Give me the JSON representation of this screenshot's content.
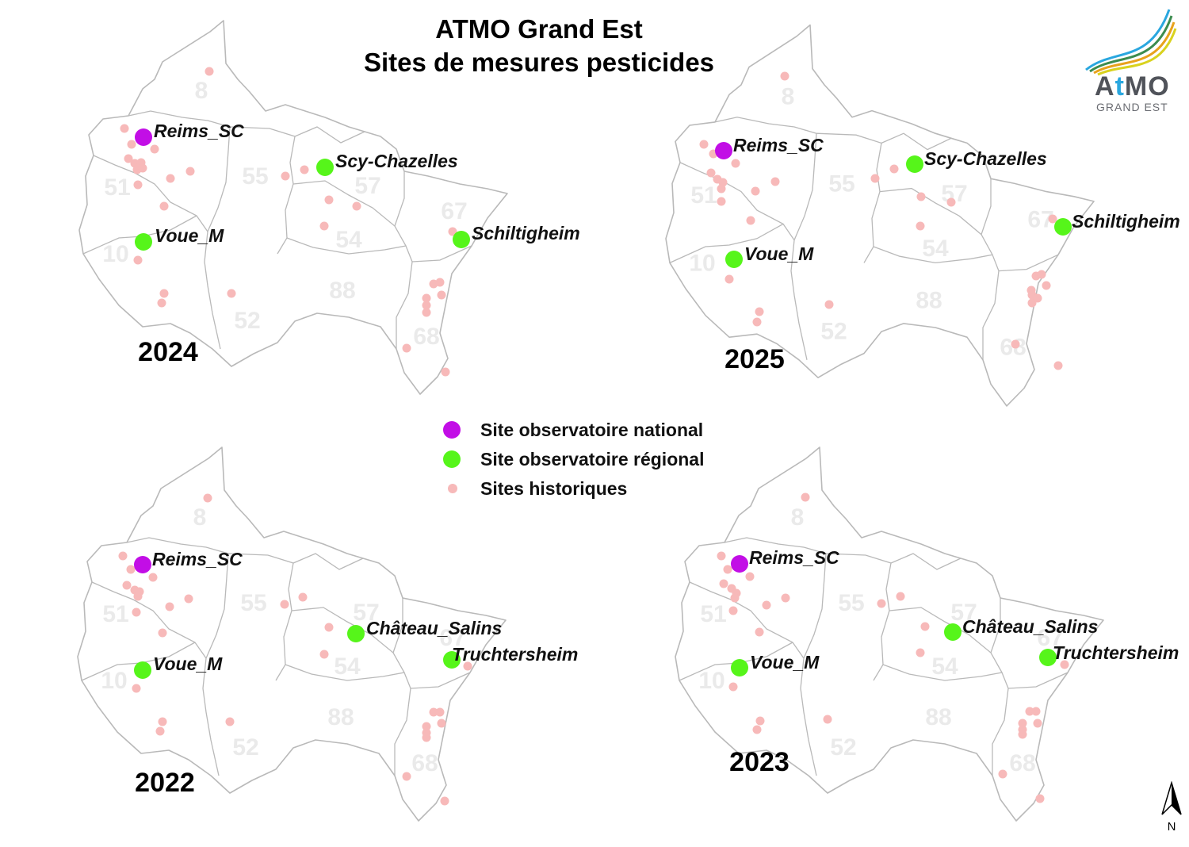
{
  "title_line1": "ATMO Grand Est",
  "title_line2": "Sites de mesures pesticides",
  "logo": {
    "word_prefix": "A",
    "word_accent": "t",
    "word_suffix": "MO",
    "subtitle": "GRAND EST"
  },
  "north_label": "N",
  "colors": {
    "national": "#c20ee6",
    "regional": "#56f51a",
    "historique": "#f7b9b9",
    "border": "#b9b9b9",
    "dept_label": "#eaeaea"
  },
  "legend": [
    {
      "kind": "national",
      "label": "Site observatoire national"
    },
    {
      "kind": "regional",
      "label": "Site observatoire régional"
    },
    {
      "kind": "historique",
      "label": "Sites historiques"
    }
  ],
  "department_codes": [
    "8",
    "51",
    "10",
    "52",
    "55",
    "54",
    "57",
    "88",
    "67",
    "68"
  ],
  "maps": [
    {
      "year": "2024",
      "sites": [
        {
          "name": "Reims_SC",
          "kind": "national"
        },
        {
          "name": "Scy-Chazelles",
          "kind": "regional"
        },
        {
          "name": "Voue_M",
          "kind": "regional"
        },
        {
          "name": "Schiltigheim",
          "kind": "regional"
        }
      ]
    },
    {
      "year": "2025",
      "sites": [
        {
          "name": "Reims_SC",
          "kind": "national"
        },
        {
          "name": "Scy-Chazelles",
          "kind": "regional"
        },
        {
          "name": "Voue_M",
          "kind": "regional"
        },
        {
          "name": "Schiltigheim",
          "kind": "regional"
        }
      ]
    },
    {
      "year": "2022",
      "sites": [
        {
          "name": "Reims_SC",
          "kind": "national"
        },
        {
          "name": "Château_Salins",
          "kind": "regional"
        },
        {
          "name": "Voue_M",
          "kind": "regional"
        },
        {
          "name": "Truchtersheim",
          "kind": "regional"
        }
      ]
    },
    {
      "year": "2023",
      "sites": [
        {
          "name": "Reims_SC",
          "kind": "national"
        },
        {
          "name": "Château_Salins",
          "kind": "regional"
        },
        {
          "name": "Voue_M",
          "kind": "regional"
        },
        {
          "name": "Truchtersheim",
          "kind": "regional"
        }
      ]
    }
  ]
}
